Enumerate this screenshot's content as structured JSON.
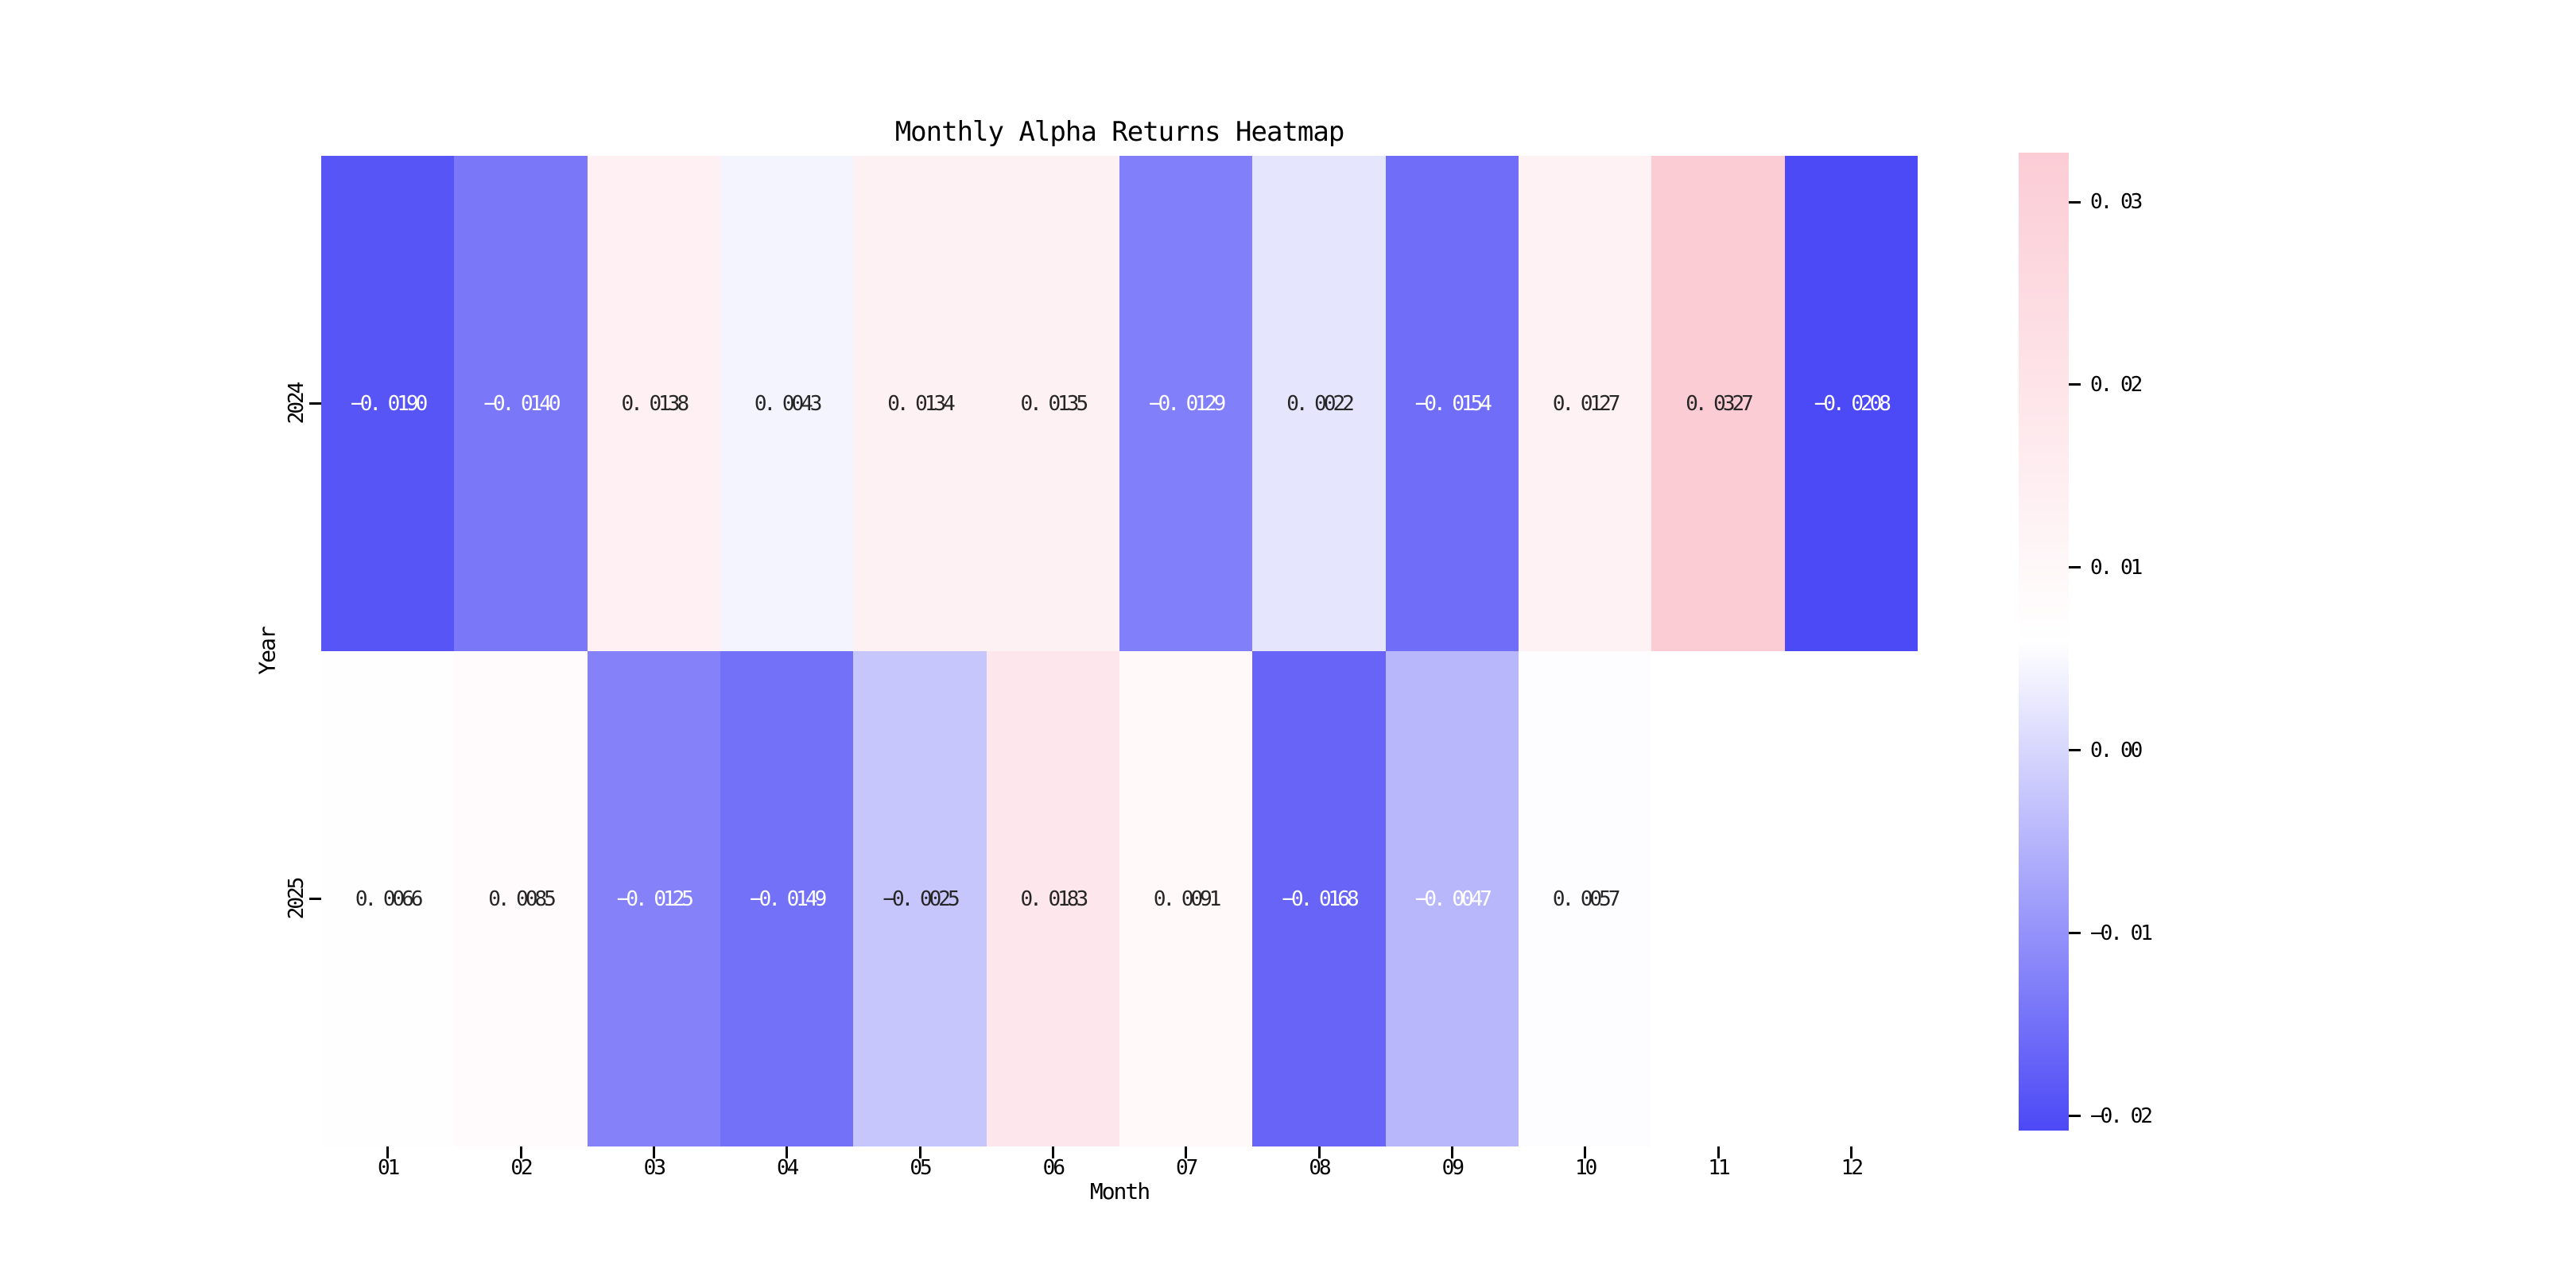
{
  "figure": {
    "background": "#FFFFFF"
  },
  "chart_data": {
    "type": "heatmap",
    "title": "Monthly Alpha Returns Heatmap",
    "xlabel": "Month",
    "ylabel": "Year",
    "x_categories": [
      "01",
      "02",
      "03",
      "04",
      "05",
      "06",
      "07",
      "08",
      "09",
      "10",
      "11",
      "12"
    ],
    "y_categories": [
      "2024",
      "2025"
    ],
    "rows": [
      {
        "year": "2024",
        "values": [
          -0.019,
          -0.014,
          0.0138,
          0.0043,
          0.0134,
          0.0135,
          -0.0129,
          0.0022,
          -0.0154,
          0.0127,
          0.0327,
          -0.0208
        ]
      },
      {
        "year": "2025",
        "values": [
          0.0066,
          0.0085,
          -0.0125,
          -0.0149,
          -0.0025,
          0.0183,
          0.0091,
          -0.0168,
          -0.0047,
          0.0057,
          null,
          null
        ]
      }
    ],
    "cell_labels": [
      [
        "−0. 0190",
        "−0. 0140",
        "0. 0138",
        "0. 0043",
        "0. 0134",
        "0. 0135",
        "−0. 0129",
        "0. 0022",
        "−0. 0154",
        "0. 0127",
        "0. 0327",
        "−0. 0208"
      ],
      [
        "0. 0066",
        "0. 0085",
        "−0. 0125",
        "−0. 0149",
        "−0. 0025",
        "0. 0183",
        "0. 0091",
        "−0. 0168",
        "−0. 0047",
        "0. 0057",
        "",
        ""
      ]
    ],
    "cell_text_colors": [
      [
        "w",
        "w",
        "k",
        "k",
        "k",
        "k",
        "w",
        "k",
        "w",
        "k",
        "k",
        "w"
      ],
      [
        "k",
        "k",
        "w",
        "w",
        "k",
        "k",
        "k",
        "w",
        "w",
        "k",
        "k",
        "k"
      ]
    ],
    "annot_colors": {
      "w": "#FFFFFF",
      "k": "#262626"
    },
    "missing_color": "#FFFFFF",
    "colorbar": {
      "vmin": -0.0208,
      "vmax": 0.0327,
      "vcenter": 0.00595,
      "color_low": "#4C49F6",
      "color_mid": "#FFFFFF",
      "color_high": "#FCCCD5",
      "ticks": [
        {
          "value": 0.03,
          "label": "0. 03"
        },
        {
          "value": 0.02,
          "label": "0. 02"
        },
        {
          "value": 0.01,
          "label": "0. 01"
        },
        {
          "value": 0.0,
          "label": "0. 00"
        },
        {
          "value": -0.01,
          "label": "−0. 01"
        },
        {
          "value": -0.02,
          "label": "−0. 02"
        }
      ]
    }
  }
}
